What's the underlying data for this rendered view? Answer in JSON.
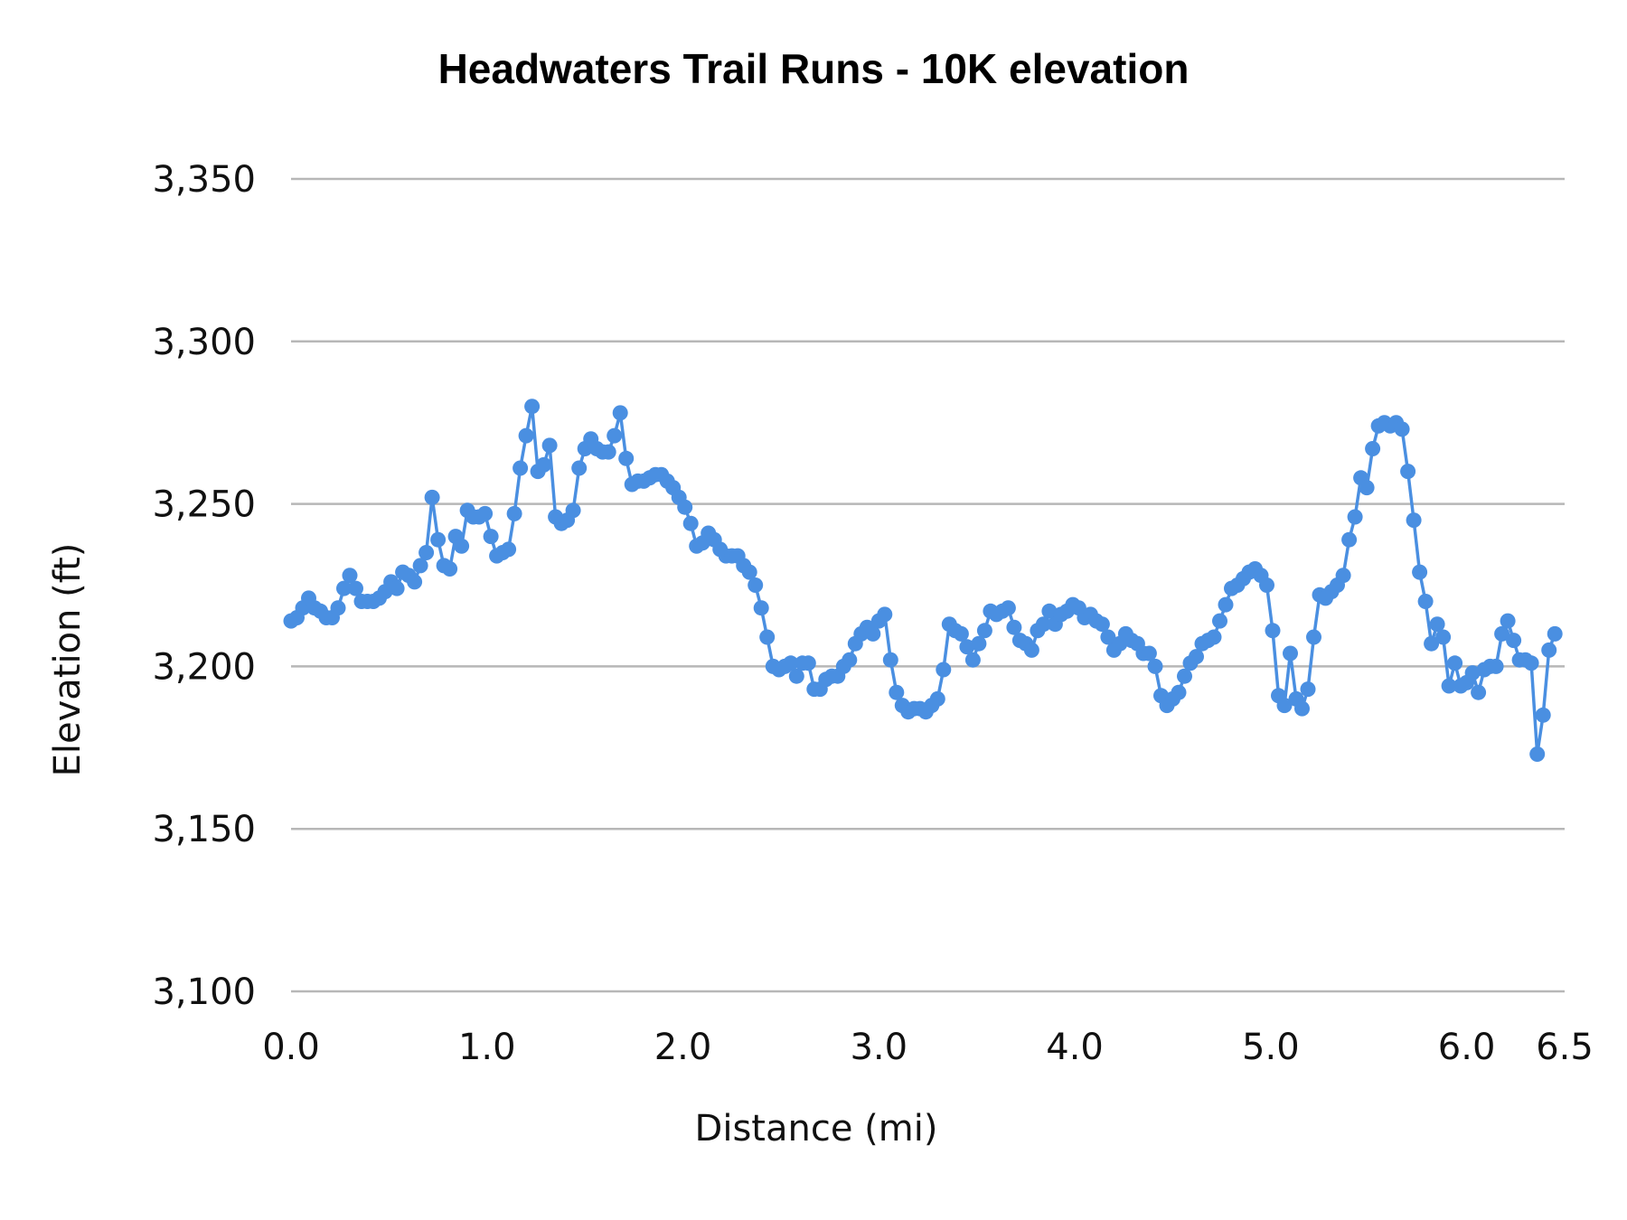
{
  "chart_data": {
    "type": "line",
    "title": "Headwaters Trail Runs - 10K elevation",
    "xlabel": "Distance (mi)",
    "ylabel": "Elevation (ft)",
    "xlim": [
      0,
      6.5
    ],
    "ylim": [
      3100,
      3350
    ],
    "xticks": [
      0,
      1,
      2,
      3,
      4,
      5,
      6,
      6.5
    ],
    "xtick_labels": [
      "0.0",
      "1.0",
      "2.0",
      "3.0",
      "4.0",
      "5.0",
      "6.0",
      "6.5"
    ],
    "yticks": [
      3100,
      3150,
      3200,
      3250,
      3300,
      3350
    ],
    "ytick_labels": [
      "3,100",
      "3,150",
      "3,200",
      "3,250",
      "3,300",
      "3,350"
    ],
    "grid": true,
    "legend": "none",
    "colors": {
      "series": "#4a8fe1",
      "grid": "#b7b7b7"
    },
    "series": [
      {
        "points": [
          [
            0.0,
            3214
          ],
          [
            0.03,
            3215
          ],
          [
            0.06,
            3218
          ],
          [
            0.09,
            3221
          ],
          [
            0.12,
            3218
          ],
          [
            0.15,
            3217
          ],
          [
            0.18,
            3215
          ],
          [
            0.21,
            3215
          ],
          [
            0.24,
            3218
          ],
          [
            0.27,
            3224
          ],
          [
            0.3,
            3228
          ],
          [
            0.33,
            3224
          ],
          [
            0.36,
            3220
          ],
          [
            0.39,
            3220
          ],
          [
            0.42,
            3220
          ],
          [
            0.45,
            3221
          ],
          [
            0.48,
            3223
          ],
          [
            0.51,
            3226
          ],
          [
            0.54,
            3224
          ],
          [
            0.57,
            3229
          ],
          [
            0.6,
            3228
          ],
          [
            0.63,
            3226
          ],
          [
            0.66,
            3231
          ],
          [
            0.69,
            3235
          ],
          [
            0.72,
            3252
          ],
          [
            0.75,
            3239
          ],
          [
            0.78,
            3231
          ],
          [
            0.81,
            3230
          ],
          [
            0.84,
            3240
          ],
          [
            0.87,
            3237
          ],
          [
            0.9,
            3248
          ],
          [
            0.93,
            3246
          ],
          [
            0.96,
            3246
          ],
          [
            0.99,
            3247
          ],
          [
            1.02,
            3240
          ],
          [
            1.05,
            3234
          ],
          [
            1.08,
            3235
          ],
          [
            1.11,
            3236
          ],
          [
            1.14,
            3247
          ],
          [
            1.17,
            3261
          ],
          [
            1.2,
            3271
          ],
          [
            1.23,
            3280
          ],
          [
            1.26,
            3260
          ],
          [
            1.29,
            3262
          ],
          [
            1.32,
            3268
          ],
          [
            1.35,
            3246
          ],
          [
            1.38,
            3244
          ],
          [
            1.41,
            3245
          ],
          [
            1.44,
            3248
          ],
          [
            1.47,
            3261
          ],
          [
            1.5,
            3267
          ],
          [
            1.53,
            3270
          ],
          [
            1.56,
            3267
          ],
          [
            1.59,
            3266
          ],
          [
            1.62,
            3266
          ],
          [
            1.65,
            3271
          ],
          [
            1.68,
            3278
          ],
          [
            1.71,
            3264
          ],
          [
            1.74,
            3256
          ],
          [
            1.77,
            3257
          ],
          [
            1.8,
            3257
          ],
          [
            1.83,
            3258
          ],
          [
            1.86,
            3259
          ],
          [
            1.89,
            3259
          ],
          [
            1.92,
            3257
          ],
          [
            1.95,
            3255
          ],
          [
            1.98,
            3252
          ],
          [
            2.01,
            3249
          ],
          [
            2.04,
            3244
          ],
          [
            2.07,
            3237
          ],
          [
            2.1,
            3238
          ],
          [
            2.13,
            3241
          ],
          [
            2.16,
            3239
          ],
          [
            2.19,
            3236
          ],
          [
            2.22,
            3234
          ],
          [
            2.25,
            3234
          ],
          [
            2.28,
            3234
          ],
          [
            2.31,
            3231
          ],
          [
            2.34,
            3229
          ],
          [
            2.37,
            3225
          ],
          [
            2.4,
            3218
          ],
          [
            2.43,
            3209
          ],
          [
            2.46,
            3200
          ],
          [
            2.49,
            3199
          ],
          [
            2.52,
            3200
          ],
          [
            2.55,
            3201
          ],
          [
            2.58,
            3197
          ],
          [
            2.61,
            3201
          ],
          [
            2.64,
            3201
          ],
          [
            2.67,
            3193
          ],
          [
            2.7,
            3193
          ],
          [
            2.73,
            3196
          ],
          [
            2.76,
            3197
          ],
          [
            2.79,
            3197
          ],
          [
            2.82,
            3200
          ],
          [
            2.85,
            3202
          ],
          [
            2.88,
            3207
          ],
          [
            2.91,
            3210
          ],
          [
            2.94,
            3212
          ],
          [
            2.97,
            3210
          ],
          [
            3.0,
            3214
          ],
          [
            3.03,
            3216
          ],
          [
            3.06,
            3202
          ],
          [
            3.09,
            3192
          ],
          [
            3.12,
            3188
          ],
          [
            3.15,
            3186
          ],
          [
            3.18,
            3187
          ],
          [
            3.21,
            3187
          ],
          [
            3.24,
            3186
          ],
          [
            3.27,
            3188
          ],
          [
            3.3,
            3190
          ],
          [
            3.33,
            3199
          ],
          [
            3.36,
            3213
          ],
          [
            3.39,
            3211
          ],
          [
            3.42,
            3210
          ],
          [
            3.45,
            3206
          ],
          [
            3.48,
            3202
          ],
          [
            3.51,
            3207
          ],
          [
            3.54,
            3211
          ],
          [
            3.57,
            3217
          ],
          [
            3.6,
            3216
          ],
          [
            3.63,
            3217
          ],
          [
            3.66,
            3218
          ],
          [
            3.69,
            3212
          ],
          [
            3.72,
            3208
          ],
          [
            3.75,
            3207
          ],
          [
            3.78,
            3205
          ],
          [
            3.81,
            3211
          ],
          [
            3.84,
            3213
          ],
          [
            3.87,
            3217
          ],
          [
            3.9,
            3213
          ],
          [
            3.93,
            3216
          ],
          [
            3.96,
            3217
          ],
          [
            3.99,
            3219
          ],
          [
            4.02,
            3218
          ],
          [
            4.05,
            3215
          ],
          [
            4.08,
            3216
          ],
          [
            4.11,
            3214
          ],
          [
            4.14,
            3213
          ],
          [
            4.17,
            3209
          ],
          [
            4.2,
            3205
          ],
          [
            4.23,
            3207
          ],
          [
            4.26,
            3210
          ],
          [
            4.29,
            3208
          ],
          [
            4.32,
            3207
          ],
          [
            4.35,
            3204
          ],
          [
            4.38,
            3204
          ],
          [
            4.41,
            3200
          ],
          [
            4.44,
            3191
          ],
          [
            4.47,
            3188
          ],
          [
            4.5,
            3190
          ],
          [
            4.53,
            3192
          ],
          [
            4.56,
            3197
          ],
          [
            4.59,
            3201
          ],
          [
            4.62,
            3203
          ],
          [
            4.65,
            3207
          ],
          [
            4.68,
            3208
          ],
          [
            4.71,
            3209
          ],
          [
            4.74,
            3214
          ],
          [
            4.77,
            3219
          ],
          [
            4.8,
            3224
          ],
          [
            4.83,
            3225
          ],
          [
            4.86,
            3227
          ],
          [
            4.89,
            3229
          ],
          [
            4.92,
            3230
          ],
          [
            4.95,
            3228
          ],
          [
            4.98,
            3225
          ],
          [
            5.01,
            3211
          ],
          [
            5.04,
            3191
          ],
          [
            5.07,
            3188
          ],
          [
            5.1,
            3204
          ],
          [
            5.13,
            3190
          ],
          [
            5.16,
            3187
          ],
          [
            5.19,
            3193
          ],
          [
            5.22,
            3209
          ],
          [
            5.25,
            3222
          ],
          [
            5.28,
            3221
          ],
          [
            5.31,
            3223
          ],
          [
            5.34,
            3225
          ],
          [
            5.37,
            3228
          ],
          [
            5.4,
            3239
          ],
          [
            5.43,
            3246
          ],
          [
            5.46,
            3258
          ],
          [
            5.49,
            3255
          ],
          [
            5.52,
            3267
          ],
          [
            5.55,
            3274
          ],
          [
            5.58,
            3275
          ],
          [
            5.61,
            3274
          ],
          [
            5.64,
            3275
          ],
          [
            5.67,
            3273
          ],
          [
            5.7,
            3260
          ],
          [
            5.73,
            3245
          ],
          [
            5.76,
            3229
          ],
          [
            5.79,
            3220
          ],
          [
            5.82,
            3207
          ],
          [
            5.85,
            3213
          ],
          [
            5.88,
            3209
          ],
          [
            5.91,
            3194
          ],
          [
            5.94,
            3201
          ],
          [
            5.97,
            3194
          ],
          [
            6.0,
            3195
          ],
          [
            6.03,
            3198
          ],
          [
            6.06,
            3192
          ],
          [
            6.09,
            3199
          ],
          [
            6.12,
            3200
          ],
          [
            6.15,
            3200
          ],
          [
            6.18,
            3210
          ],
          [
            6.21,
            3214
          ],
          [
            6.24,
            3208
          ],
          [
            6.27,
            3202
          ],
          [
            6.3,
            3202
          ],
          [
            6.33,
            3201
          ],
          [
            6.36,
            3173
          ],
          [
            6.39,
            3185
          ],
          [
            6.42,
            3205
          ],
          [
            6.45,
            3210
          ]
        ]
      }
    ]
  }
}
